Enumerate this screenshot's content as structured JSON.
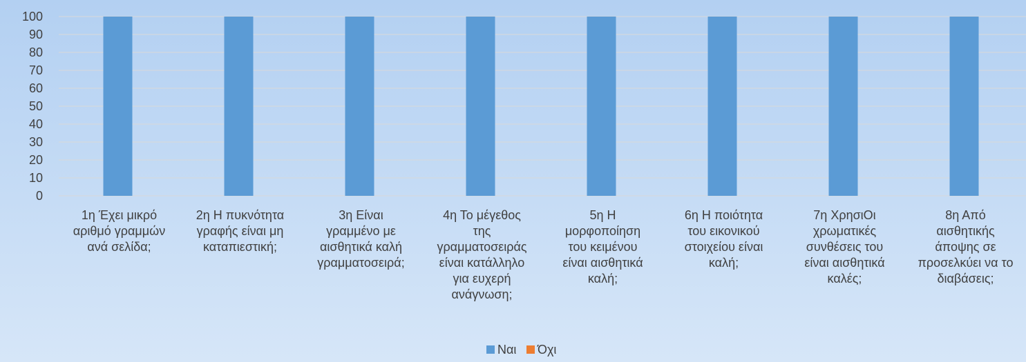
{
  "chart_data": {
    "type": "bar",
    "title": "",
    "xlabel": "",
    "ylabel": "",
    "ylim": [
      0,
      100
    ],
    "yticks": [
      0,
      10,
      20,
      30,
      40,
      50,
      60,
      70,
      80,
      90,
      100
    ],
    "grid": true,
    "legend_position": "bottom",
    "categories": [
      "1η Έχει μικρό αριθμό γραμμών ανά σελίδα;",
      "2η Η πυκνότητα γραφής είναι μη καταπιεστική;",
      "3η Είναι γραμμένο με αισθητικά καλή γραμματοσειρά;",
      "4η Το μέγεθος της γραμματοσειράς είναι κατάλληλο για ευχερή ανάγνωση;",
      "5η Η μορφοποίηση του κειμένου είναι αισθητικά καλή;",
      "6η Η ποιότητα του εικονικού στοιχείου είναι καλή;",
      "7η ΧρησιΟι χρωματικές συνθέσεις του είναι αισθητικά καλές;",
      "8η Από αισθητικής άποψης σε προσελκύει να το διαβάσεις;"
    ],
    "category_lines": [
      [
        "1η  Έχει μικρό",
        "αριθμό γραμμών",
        "ανά σελίδα;"
      ],
      [
        "2η  Η πυκνότητα",
        "γραφής είναι μη",
        "καταπιεστική;"
      ],
      [
        "3η  Είναι",
        "γραμμένο με",
        "αισθητικά καλή",
        "γραμματοσειρά;"
      ],
      [
        "4η  Το μέγεθος",
        "της",
        "γραμματοσειράς",
        "είναι κατάλληλο",
        "για ευχερή",
        "ανάγνωση;"
      ],
      [
        "5η  Η",
        "μορφοποίηση",
        "του κειμένου",
        "είναι αισθητικά",
        "καλή;"
      ],
      [
        "6η  Η ποιότητα",
        "του εικονικού",
        "στοιχείου είναι",
        "καλή;"
      ],
      [
        "7η  ΧρησιΟι",
        "χρωματικές",
        "συνθέσεις του",
        "είναι αισθητικά",
        "καλές;"
      ],
      [
        "8η  Από",
        "αισθητικής",
        "άποψης σε",
        "προσελκύει να το",
        "διαβάσεις;"
      ]
    ],
    "series": [
      {
        "name": "Ναι",
        "color": "#5b9bd5",
        "values": [
          100,
          100,
          100,
          100,
          100,
          100,
          100,
          100
        ]
      },
      {
        "name": "Όχι",
        "color": "#ed7d31",
        "values": [
          0,
          0,
          0,
          0,
          0,
          0,
          0,
          0
        ]
      }
    ]
  }
}
